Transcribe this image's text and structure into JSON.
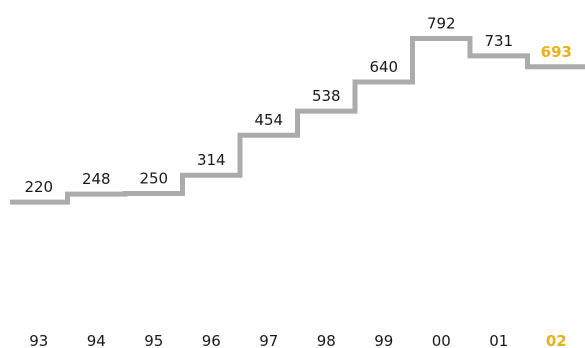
{
  "chart_data": {
    "type": "line",
    "step": true,
    "categories": [
      "93",
      "94",
      "95",
      "96",
      "97",
      "98",
      "99",
      "00",
      "01",
      "02"
    ],
    "values": [
      220,
      248,
      250,
      314,
      454,
      538,
      640,
      792,
      731,
      693
    ],
    "value_labels": [
      "220",
      "248",
      "250",
      "314",
      "454",
      "538",
      "640",
      "792",
      "731",
      "693"
    ],
    "highlight_index": 9,
    "title": "",
    "xlabel": "",
    "ylabel": "",
    "ylim": [
      0,
      800
    ],
    "grid": false,
    "colors": {
      "line": "#ababab",
      "text": "#1a1a1a",
      "highlight": "#e8b21a"
    }
  }
}
